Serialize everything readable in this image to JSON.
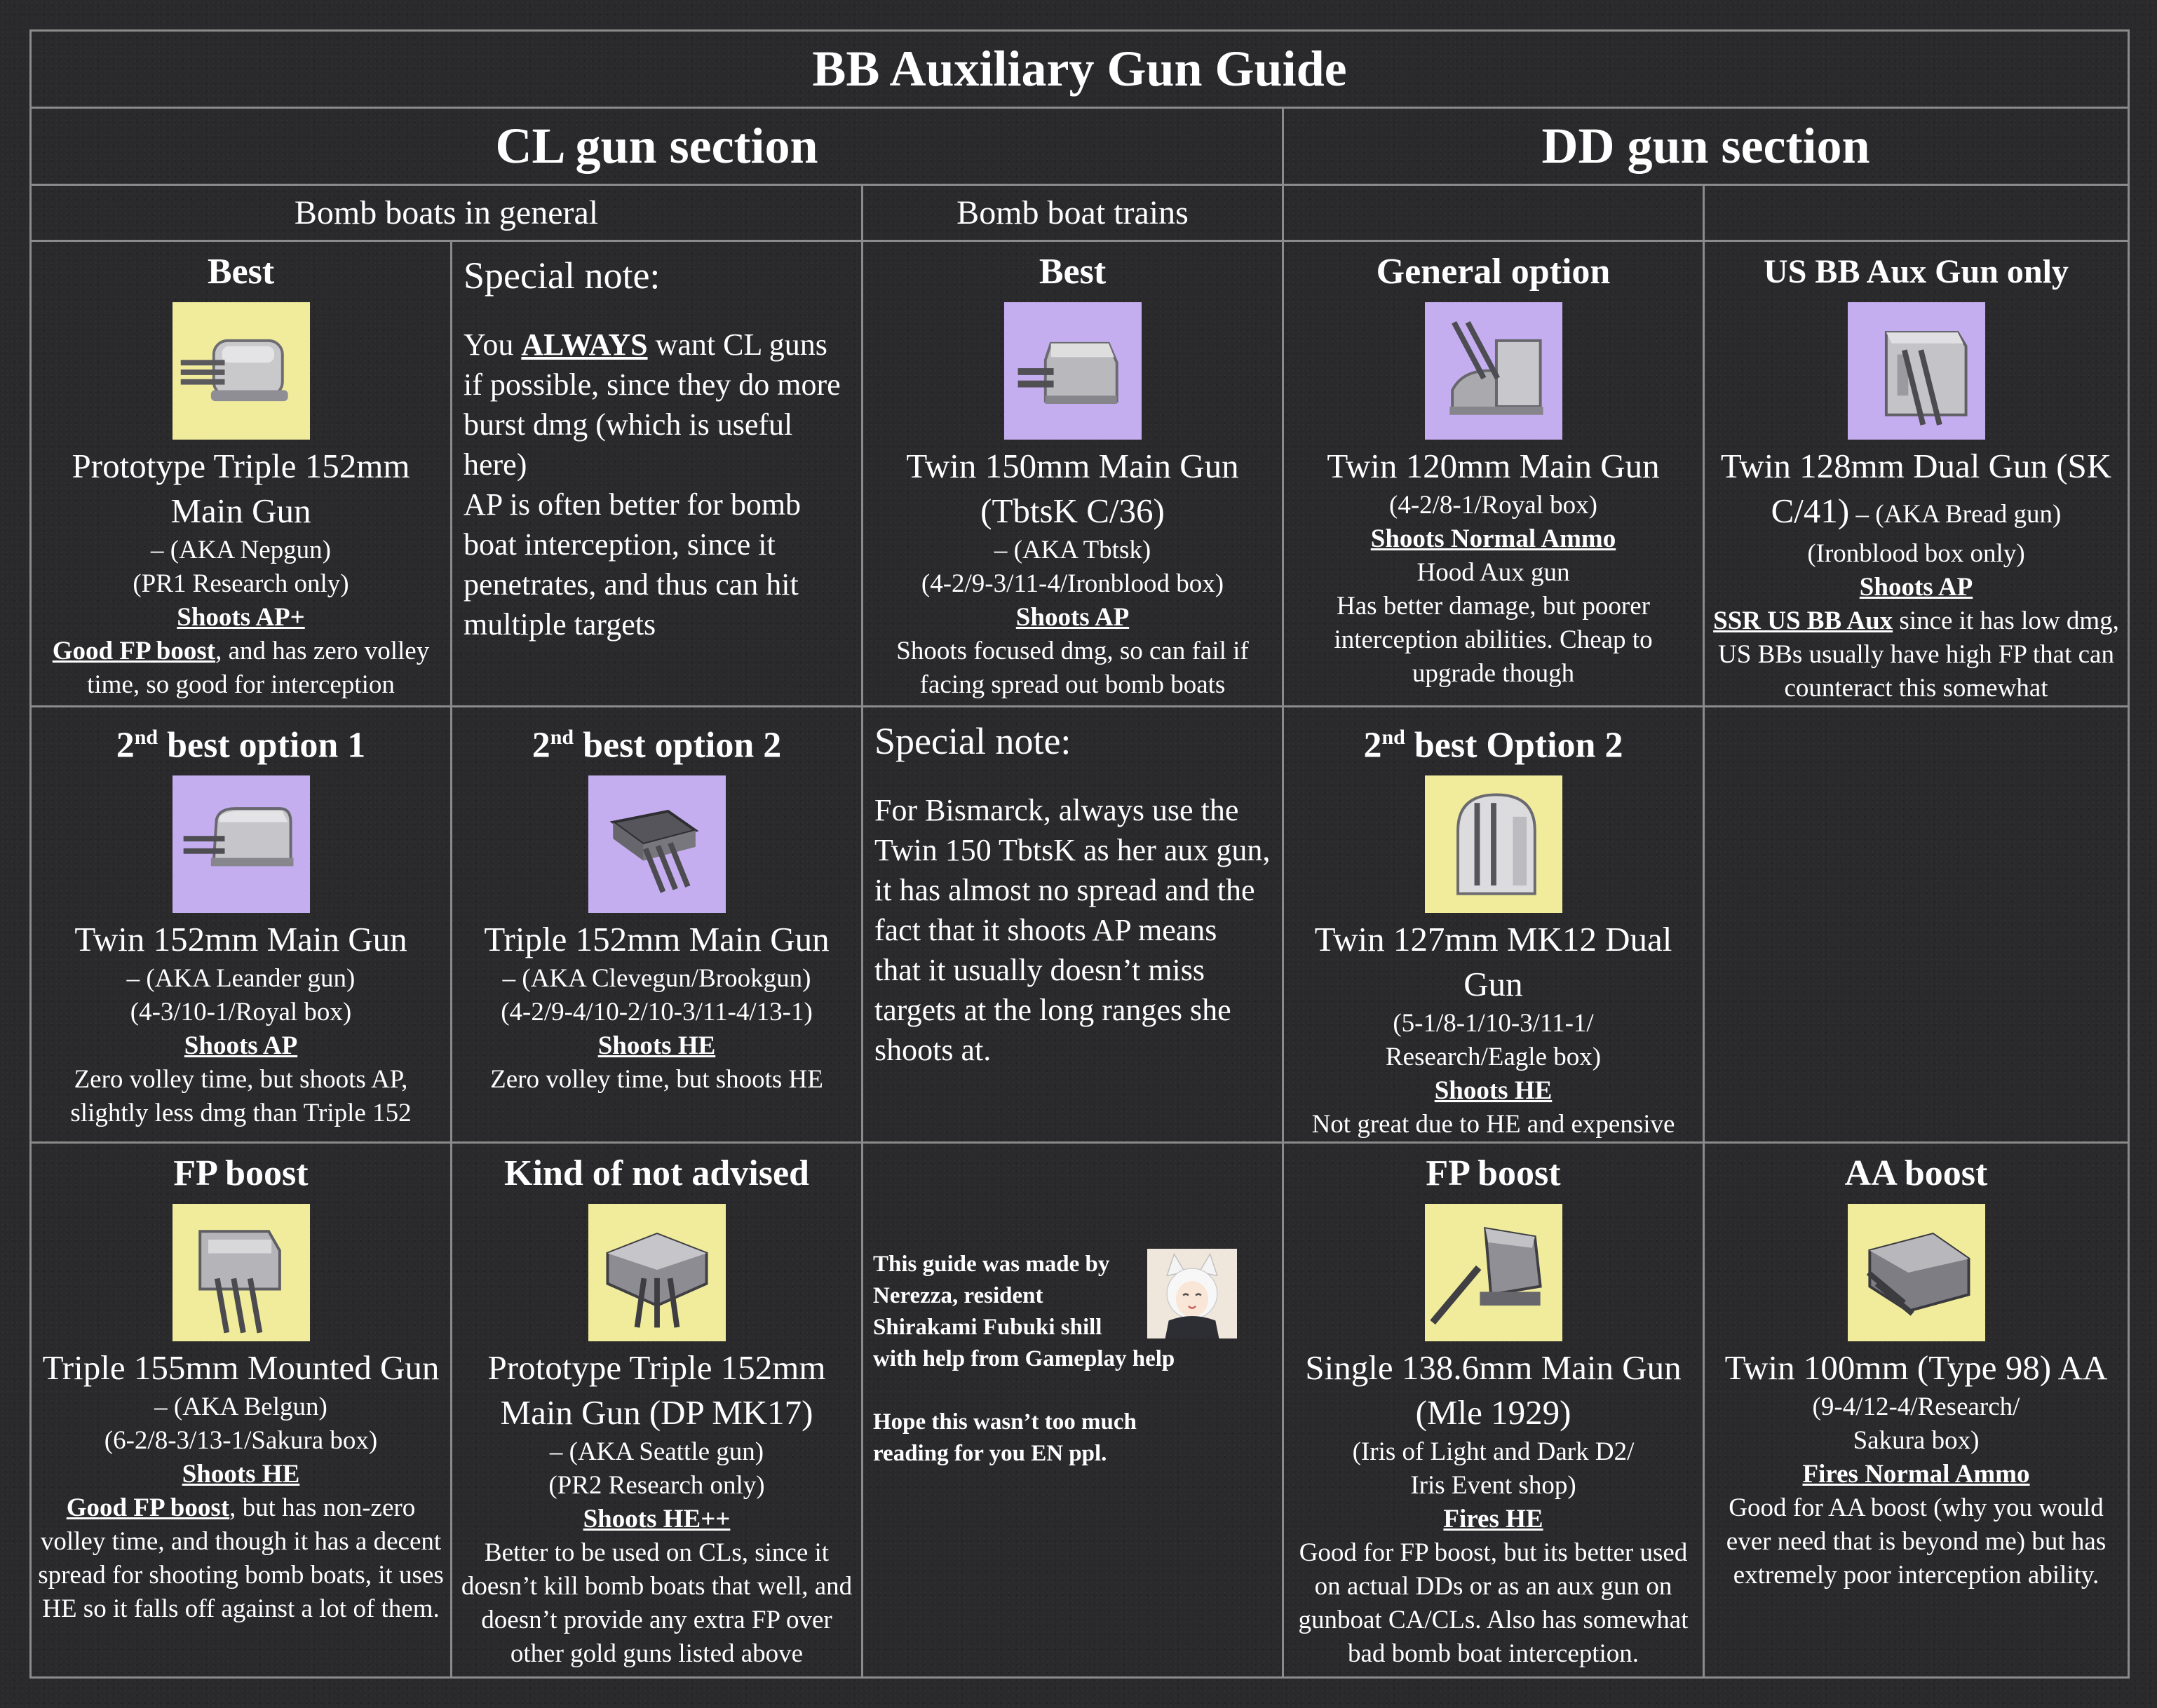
{
  "title": "BB Auxiliary Gun Guide",
  "sections": {
    "cl": "CL gun section",
    "dd": "DD gun section"
  },
  "subheaders": {
    "general": "Bomb boats in general",
    "trains": "Bomb boat trains"
  },
  "cells": {
    "cl_best": {
      "heading": "Best",
      "icon": "triple-turret-grey-icon",
      "bg": "yellow",
      "name": "Prototype Triple 152mm Main Gun",
      "aka": "– (AKA Nepgun)",
      "source": "(PR1 Research only)",
      "ammo": "Shoots AP+",
      "desc_bold": "Good FP boost",
      "desc": ", and has zero volley time, so good for interception"
    },
    "note_general": {
      "heading": "Special note:",
      "p1_pre": "You ",
      "p1_bold": "ALWAYS",
      "p1_post": " want CL guns if possible, since they do more burst dmg (which is useful here)",
      "p2": "AP is often better for bomb boat interception, since it penetrates, and thus can hit multiple targets"
    },
    "train_best": {
      "heading": "Best",
      "icon": "twin-turret-grey-icon",
      "bg": "purple",
      "name": "Twin 150mm Main Gun (TbtsK C/36)",
      "aka": "– (AKA Tbtsk)",
      "source": "(4-2/9-3/11-4/Ironblood box)",
      "ammo": "Shoots AP",
      "desc": "Shoots focused dmg, so can fail if facing spread out bomb boats"
    },
    "dd_general": {
      "heading": "General option",
      "icon": "open-mount-gun-icon",
      "bg": "purple",
      "name": "Twin 120mm Main Gun",
      "source": "(4-2/8-1/Royal box)",
      "ammo": "Shoots Normal Ammo",
      "desc1": "Hood Aux gun",
      "desc": "Has better damage, but poorer interception abilities. Cheap to upgrade though"
    },
    "dd_us": {
      "heading": "US BB Aux Gun only",
      "icon": "box-turret-icon",
      "bg": "purple",
      "name": "Twin 128mm Dual Gun (SK C/41)",
      "aka_inline": " – (AKA Bread gun)",
      "source": "(Ironblood box only)",
      "ammo": "Shoots AP",
      "desc_bold": "SSR US BB Aux",
      "desc": " since it has low dmg, US BBs usually have high FP that can counteract this somewhat"
    },
    "cl_2nd_1": {
      "heading_pre": "2",
      "heading_sup": "nd",
      "heading_post": " best option 1",
      "icon": "twin-turret-rounded-icon",
      "bg": "purple",
      "name": "Twin 152mm Main Gun",
      "aka": "– (AKA Leander gun)",
      "source": "(4-3/10-1/Royal box)",
      "ammo": "Shoots AP",
      "desc": "Zero volley time, but shoots AP, slightly less dmg than Triple 152"
    },
    "cl_2nd_2": {
      "heading_pre": "2",
      "heading_sup": "nd",
      "heading_post": " best option 2",
      "icon": "triple-turret-dark-icon",
      "bg": "purple",
      "name": "Triple 152mm Main Gun",
      "aka": "– (AKA Clevegun/Brookgun)",
      "source": "(4-2/9-4/10-2/10-3/11-4/13-1)",
      "ammo": "Shoots HE",
      "desc": "Zero volley time, but shoots HE"
    },
    "note_bismarck": {
      "heading": "Special note:",
      "body": "For Bismarck, always use the Twin 150 TbtsK as her aux gun, it has almost no spread and the fact that it shoots AP means that it usually doesn’t miss targets at the long ranges she shoots at."
    },
    "dd_2nd_2": {
      "heading_pre": "2",
      "heading_sup": "nd",
      "heading_post": " best Option 2",
      "icon": "dome-mount-gun-icon",
      "bg": "yellow",
      "name": "Twin 127mm MK12 Dual Gun",
      "source1": "(5-1/8-1/10-3/11-1/",
      "source2": "Research/Eagle box)",
      "ammo": "Shoots HE",
      "desc": "Not great due to HE and expensive"
    },
    "cl_fp": {
      "heading": "FP boost",
      "icon": "triple-turret-mounted-icon",
      "bg": "yellow",
      "name": "Triple 155mm Mounted Gun",
      "aka": "– (AKA Belgun)",
      "source": "(6-2/8-3/13-1/Sakura box)",
      "ammo": "Shoots HE",
      "desc_bold": "Good FP boost",
      "desc": ", but has non-zero volley time, and though it has a decent spread for shooting bomb boats, it uses HE so it falls off against a lot of them."
    },
    "cl_not_advised": {
      "heading": "Kind of not advised",
      "icon": "triple-turret-dp-icon",
      "bg": "yellow",
      "name": "Prototype Triple 152mm Main Gun (DP MK17)",
      "aka": "– (AKA Seattle gun)",
      "source": "(PR2 Research only)",
      "ammo": "Shoots HE++",
      "desc": "Better to be used on CLs, since it doesn’t kill bomb boats that well, and doesn’t provide any extra FP over other gold guns listed above"
    },
    "credit": {
      "lines": [
        "This guide was made by",
        "Nerezza, resident",
        "Shirakami Fubuki shill",
        "with help from Gameplay help",
        "",
        "Hope this wasn’t too much",
        "reading for you EN ppl."
      ],
      "avatar": "fox-girl-avatar-icon"
    },
    "dd_fp": {
      "heading": "FP boost",
      "icon": "single-mount-gun-icon",
      "bg": "yellow",
      "name": "Single 138.6mm Main Gun (Mle 1929)",
      "source1": "(Iris of Light and Dark D2/",
      "source2": "Iris Event shop)",
      "ammo": "Fires HE",
      "desc": "Good for FP boost, but its better used on actual DDs or as an aux gun on gunboat CA/CLs. Also has somewhat bad bomb boat interception."
    },
    "dd_aa": {
      "heading": "AA boost",
      "icon": "aa-twin-mount-icon",
      "bg": "yellow",
      "name": "Twin 100mm (Type 98) AA",
      "source1": "(9-4/12-4/Research/",
      "source2": "Sakura box)",
      "ammo": "Fires Normal Ammo",
      "desc": "Good for AA boost (why you would ever need that is beyond me) but has extremely poor interception ability."
    }
  },
  "colors": {
    "yellow": "#f0ec9c",
    "purple": "#c5aef0",
    "grid": "#8b8b8b",
    "background": "#2a2a2c"
  }
}
